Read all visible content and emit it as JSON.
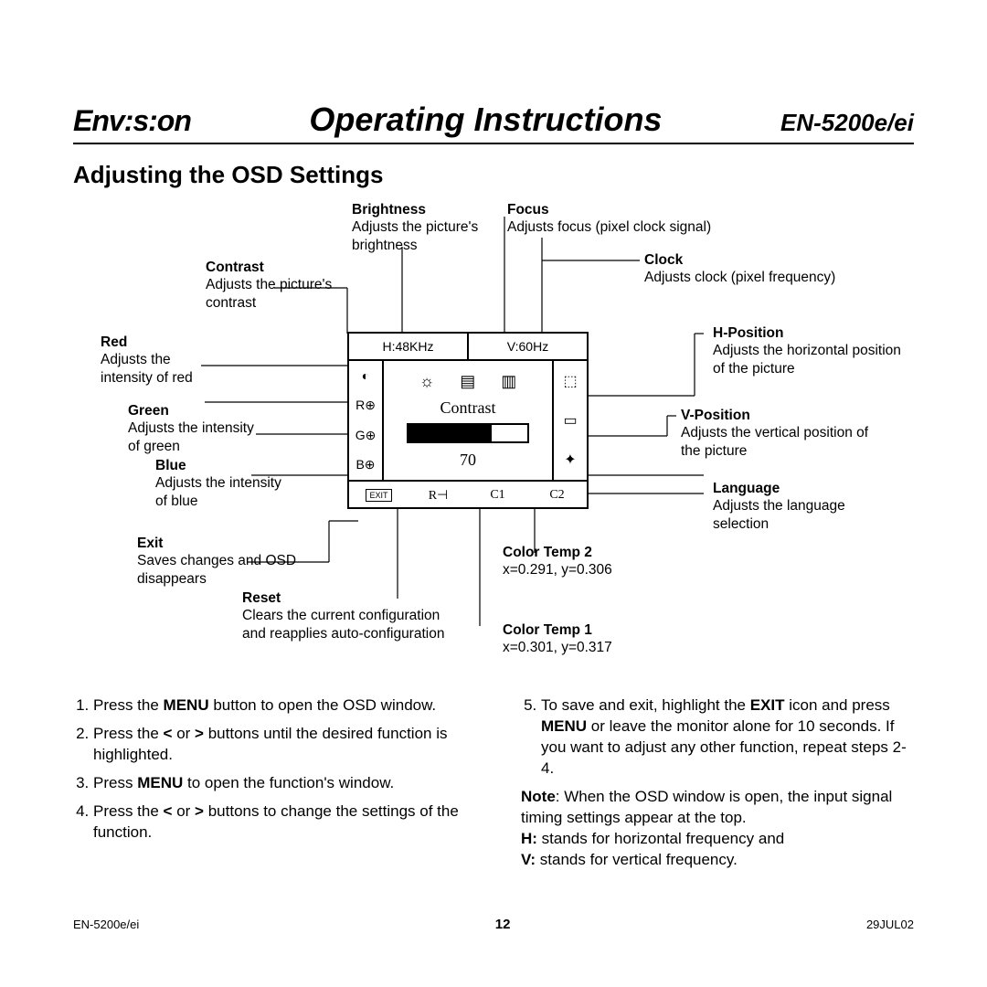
{
  "header": {
    "brand": "Env:s:on",
    "title": "Operating Instructions",
    "model": "EN-5200e/ei"
  },
  "section_title": "Adjusting the OSD Settings",
  "osd": {
    "top_left": "H:48KHz",
    "top_right": "V:60Hz",
    "left_items": [
      "R⊕",
      "G⊕",
      "B⊕"
    ],
    "center_name": "Contrast",
    "center_value": "70",
    "right_icons": [
      "⊔",
      "▭",
      "✦"
    ],
    "bottom_items": [
      "EXIT",
      "R⊣",
      "C1",
      "C2"
    ]
  },
  "labels": {
    "brightness": {
      "t": "Brightness",
      "d": "Adjusts the picture's brightness"
    },
    "contrast": {
      "t": "Contrast",
      "d": "Adjusts the picture's contrast"
    },
    "red": {
      "t": "Red",
      "d": "Adjusts the intensity of red"
    },
    "green": {
      "t": "Green",
      "d": "Adjusts the intensity of green"
    },
    "blue": {
      "t": "Blue",
      "d": "Adjusts the intensity of blue"
    },
    "exit": {
      "t": "Exit",
      "d": "Saves changes and OSD disappears"
    },
    "reset": {
      "t": "Reset",
      "d": "Clears the current configuration and reapplies auto-configuration"
    },
    "focus": {
      "t": "Focus",
      "d": "Adjusts focus (pixel clock signal)"
    },
    "clock": {
      "t": "Clock",
      "d": "Adjusts clock (pixel frequency)"
    },
    "hpos": {
      "t": "H-Position",
      "d": "Adjusts the horizontal position of the picture"
    },
    "vpos": {
      "t": "V-Position",
      "d": "Adjusts the vertical position of the picture"
    },
    "lang": {
      "t": "Language",
      "d": "Adjusts the language selection"
    },
    "ct1": {
      "t": "Color Temp 1",
      "d": "x=0.301, y=0.317"
    },
    "ct2": {
      "t": "Color Temp 2",
      "d": "x=0.291, y=0.306"
    }
  },
  "instructions": {
    "left": [
      "Press the <b>MENU</b> button to open the OSD window.",
      "Press the <b>&lt;</b> or <b>&gt;</b> buttons until the desired function is highlighted.",
      "Press <b>MENU</b> to open the function's window.",
      "Press the <b>&lt;</b> or <b>&gt;</b> buttons to change the settings of the function."
    ],
    "right_step": "To save and exit, highlight the <b>EXIT</b> icon and press <b>MENU</b> or leave the monitor alone for 10 seconds. If you want to adjust any other function, repeat steps 2-4.",
    "note": "<b>Note</b>: When the OSD window is open, the input signal timing settings appear at the top.<br><b>H:</b> stands for horizontal frequency and<br><b>V:</b> stands for vertical frequency."
  },
  "footer": {
    "left": "EN-5200e/ei",
    "page": "12",
    "right": "29JUL02"
  },
  "colors": {
    "text": "#000000",
    "bg": "#ffffff",
    "line": "#000000"
  }
}
